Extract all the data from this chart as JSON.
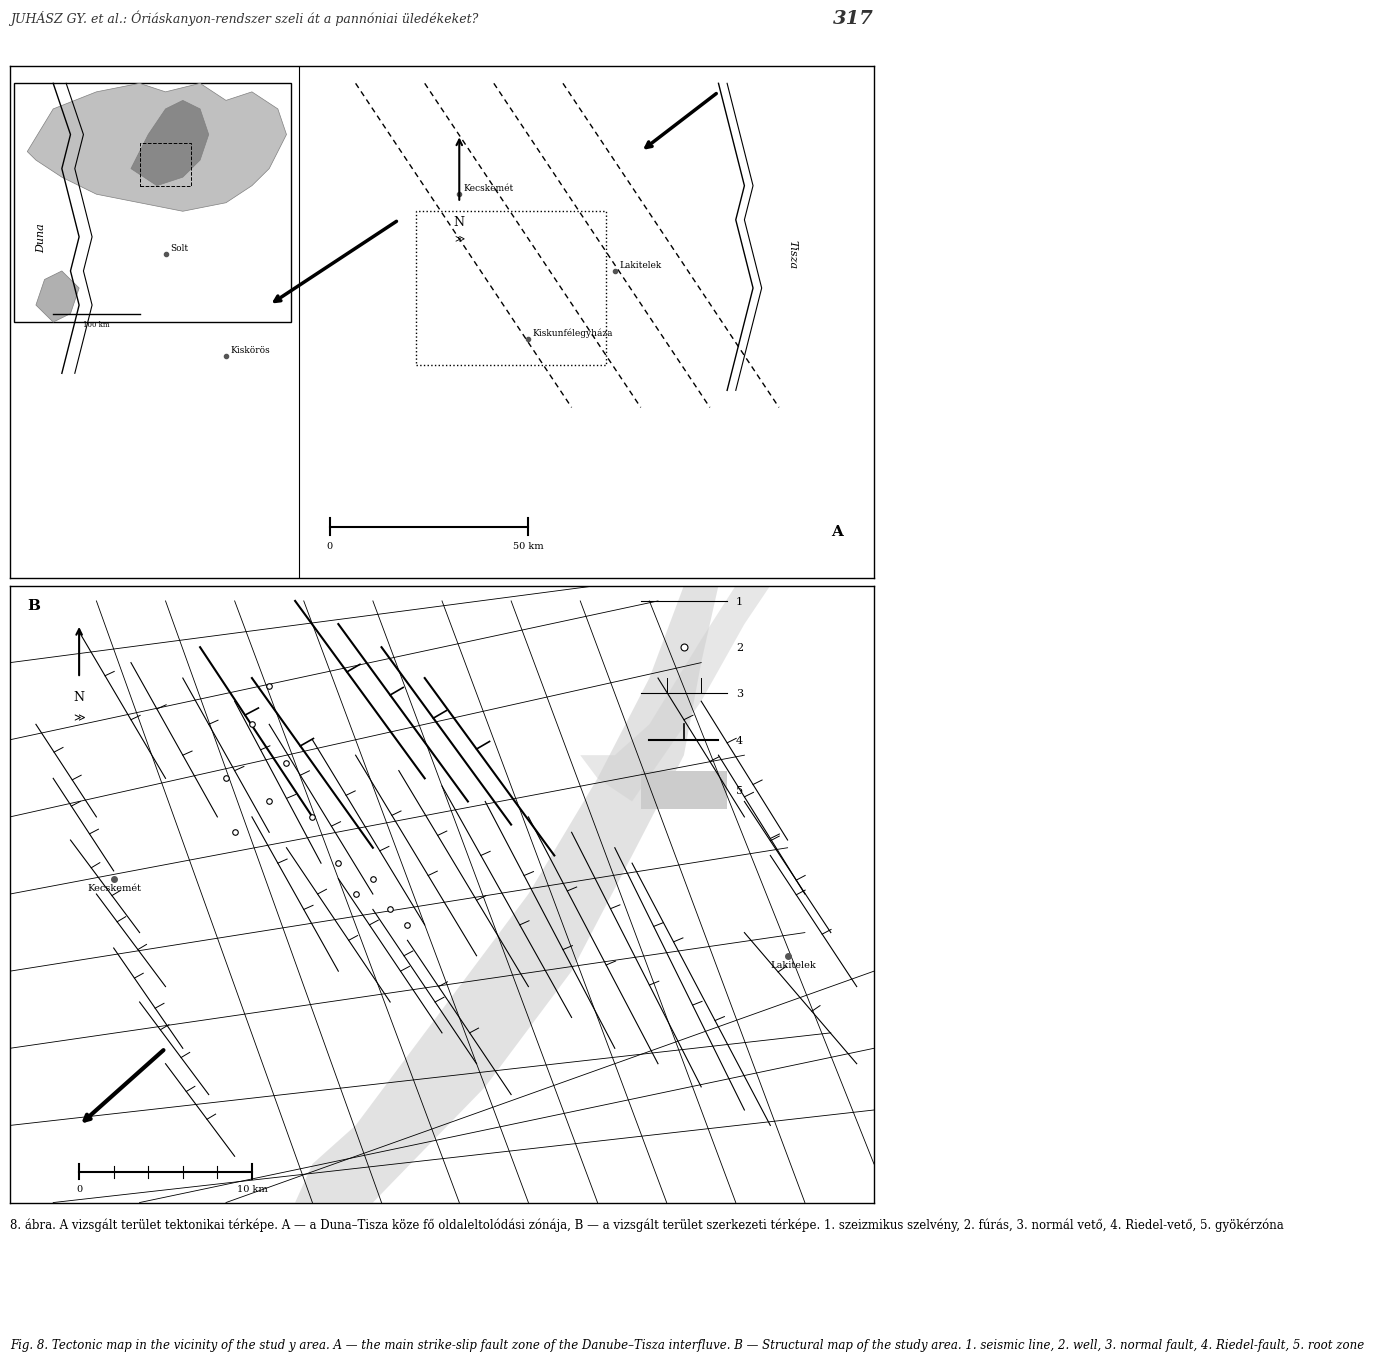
{
  "page_header": "JUHÁSZ GY. et al.: Óriáskanyon-rendszer szeli át a pannóniai üledékeket?",
  "page_number": "317",
  "caption_hungarian": "8. ábra. A vizsgált terület tektonikai térképe. A — a Duna–Tisza köze fő oldaleltolódási zónája, B — a vizsgált terület szerkezeti térképe. 1. szeizmikus szelvény, 2. fúrás, 3. normál vető, 4. Riedel-vető, 5. gyökérzóna",
  "caption_english": "Fig. 8. Tectonic map in the vicinity of the stud y area. A — the main strike-slip fault zone of the Danube–Tisza interfluve. B — Structural map of the study area. 1. seismic line, 2. well, 3. normal fault, 4. Riedel-fault, 5. root zone",
  "bg_color": "#ffffff",
  "map_border_color": "#000000",
  "gray_color": "#aaaaaa",
  "light_gray": "#cccccc",
  "dark_gray": "#666666"
}
